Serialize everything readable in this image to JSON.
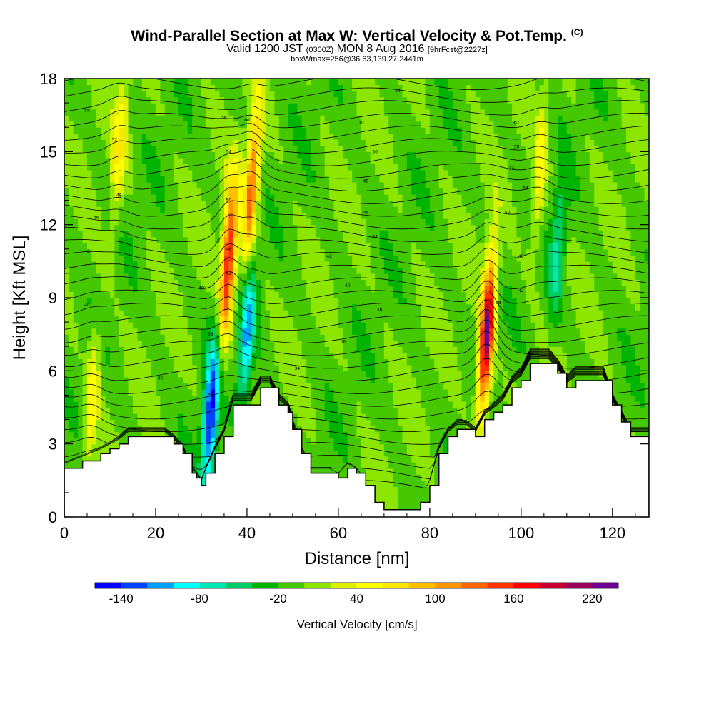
{
  "title": {
    "main": "Wind-Parallel Section at Max W: Vertical Velocity & Pot.Temp.",
    "copyright": "(C)",
    "valid_prefix": "Valid 1200 JST",
    "valid_utc": "(0300Z)",
    "valid_date": "MON 8 Aug 2016",
    "forecast": "[9hrFcst@2227z]",
    "boxwmax": "boxWmax=256@36.63,139.27,2441m"
  },
  "chart_data": {
    "type": "heatmap",
    "xlabel": "Distance [nm]",
    "ylabel": "Height [Kft MSL]",
    "xlim": [
      0,
      128
    ],
    "ylim": [
      0,
      18
    ],
    "x_ticks": [
      0,
      20,
      40,
      60,
      80,
      100,
      120
    ],
    "y_ticks": [
      0,
      3,
      6,
      9,
      12,
      15,
      18
    ],
    "colorbar": {
      "title": "Vertical Velocity [cm/s]",
      "labels": [
        "-140",
        "-80",
        "-20",
        "40",
        "100",
        "160",
        "220"
      ],
      "min": -160,
      "max": 240,
      "colors": [
        "#0000ff",
        "#0044ff",
        "#00a0ff",
        "#00ffff",
        "#00e6b4",
        "#00cc64",
        "#00b400",
        "#46c800",
        "#8ce600",
        "#dcf000",
        "#ffff00",
        "#ffe600",
        "#ffbe00",
        "#ff9600",
        "#ff6400",
        "#ff3200",
        "#ff0000",
        "#c80032",
        "#9b005a",
        "#6e0096"
      ]
    },
    "terrain_kft": [
      [
        0,
        2
      ],
      [
        4,
        2.3
      ],
      [
        8,
        2.6
      ],
      [
        10,
        2.8
      ],
      [
        12,
        3
      ],
      [
        14,
        3.3
      ],
      [
        22,
        3.3
      ],
      [
        24,
        3
      ],
      [
        26,
        2.6
      ],
      [
        28,
        1.8
      ],
      [
        29,
        1.6
      ],
      [
        30,
        1.3
      ],
      [
        31,
        1.8
      ],
      [
        33,
        2.6
      ],
      [
        35,
        3.3
      ],
      [
        37,
        4.6
      ],
      [
        41,
        4.6
      ],
      [
        43,
        5.3
      ],
      [
        45,
        5.3
      ],
      [
        47,
        4.6
      ],
      [
        49,
        4.3
      ],
      [
        50,
        3.6
      ],
      [
        52,
        2.6
      ],
      [
        54,
        1.8
      ],
      [
        58,
        1.8
      ],
      [
        60,
        1.6
      ],
      [
        62,
        2
      ],
      [
        64,
        1.8
      ],
      [
        66,
        1.3
      ],
      [
        68,
        0.6
      ],
      [
        70,
        0.3
      ],
      [
        74,
        0.3
      ],
      [
        78,
        0.6
      ],
      [
        80,
        1.3
      ],
      [
        82,
        2.6
      ],
      [
        84,
        3.3
      ],
      [
        86,
        3.6
      ],
      [
        88,
        3.6
      ],
      [
        90,
        3.3
      ],
      [
        92,
        4
      ],
      [
        94,
        4.3
      ],
      [
        96,
        4.6
      ],
      [
        98,
        5.3
      ],
      [
        100,
        5.6
      ],
      [
        102,
        6.3
      ],
      [
        104,
        6.3
      ],
      [
        106,
        6.3
      ],
      [
        108,
        5.9
      ],
      [
        110,
        5.3
      ],
      [
        112,
        5.6
      ],
      [
        116,
        5.6
      ],
      [
        118,
        5.6
      ],
      [
        120,
        4.6
      ],
      [
        122,
        3.9
      ],
      [
        124,
        3.3
      ],
      [
        128,
        3.3
      ]
    ],
    "updrafts": [
      {
        "x": 36,
        "y": 10.5,
        "peak": 180
      },
      {
        "x": 41,
        "y": 13.5,
        "peak": 140
      },
      {
        "x": 92.5,
        "y": 7.5,
        "peak": 230
      },
      {
        "x": 104,
        "y": 14,
        "peak": 60
      },
      {
        "x": 6,
        "y": 4.8,
        "peak": 60
      },
      {
        "x": 12,
        "y": 15,
        "peak": 60
      }
    ],
    "downdrafts": [
      {
        "x": 32,
        "y": 4.2,
        "peak": -140
      },
      {
        "x": 40,
        "y": 7.5,
        "peak": -100
      },
      {
        "x": 108,
        "y": 11,
        "peak": -60
      }
    ],
    "theta_contour_labels": [
      {
        "x": 5,
        "y": 16.7,
        "text": "56"
      },
      {
        "x": 11,
        "y": 15.5,
        "text": "52"
      },
      {
        "x": 12,
        "y": 13.2,
        "text": "48"
      },
      {
        "x": 7,
        "y": 12.3,
        "text": "46"
      },
      {
        "x": 5,
        "y": 10.9,
        "text": "42"
      },
      {
        "x": 5,
        "y": 8.7,
        "text": "40"
      },
      {
        "x": 30,
        "y": 9.4,
        "text": "40"
      },
      {
        "x": 32,
        "y": 7.5,
        "text": "38"
      },
      {
        "x": 21,
        "y": 5.7,
        "text": "36"
      },
      {
        "x": 32,
        "y": 5,
        "text": "34"
      },
      {
        "x": 35,
        "y": 16.4,
        "text": "56"
      },
      {
        "x": 40,
        "y": 16.3,
        "text": "60"
      },
      {
        "x": 36,
        "y": 15,
        "text": "54"
      },
      {
        "x": 36,
        "y": 13,
        "text": "50"
      },
      {
        "x": 36,
        "y": 11,
        "text": "46"
      },
      {
        "x": 36,
        "y": 10,
        "text": "42"
      },
      {
        "x": 73,
        "y": 17.5,
        "text": "14"
      },
      {
        "x": 65,
        "y": 16.2,
        "text": "10"
      },
      {
        "x": 68,
        "y": 15,
        "text": "50"
      },
      {
        "x": 66,
        "y": 13.8,
        "text": "48"
      },
      {
        "x": 66,
        "y": 12.5,
        "text": "46"
      },
      {
        "x": 68,
        "y": 11.5,
        "text": "44"
      },
      {
        "x": 58,
        "y": 10.7,
        "text": "42"
      },
      {
        "x": 62,
        "y": 9.5,
        "text": "40"
      },
      {
        "x": 69,
        "y": 8.5,
        "text": "38"
      },
      {
        "x": 61,
        "y": 7.2,
        "text": "36"
      },
      {
        "x": 51,
        "y": 6.1,
        "text": "34"
      },
      {
        "x": 99,
        "y": 16.2,
        "text": "62"
      },
      {
        "x": 99,
        "y": 15.2,
        "text": "58"
      },
      {
        "x": 98,
        "y": 14.3,
        "text": "56"
      },
      {
        "x": 101,
        "y": 13.5,
        "text": "54"
      },
      {
        "x": 97,
        "y": 12.5,
        "text": "50"
      },
      {
        "x": 100,
        "y": 10.7,
        "text": "46"
      },
      {
        "x": 100,
        "y": 9.3,
        "text": "42"
      },
      {
        "x": 95,
        "y": 8.8,
        "text": "38"
      }
    ]
  }
}
